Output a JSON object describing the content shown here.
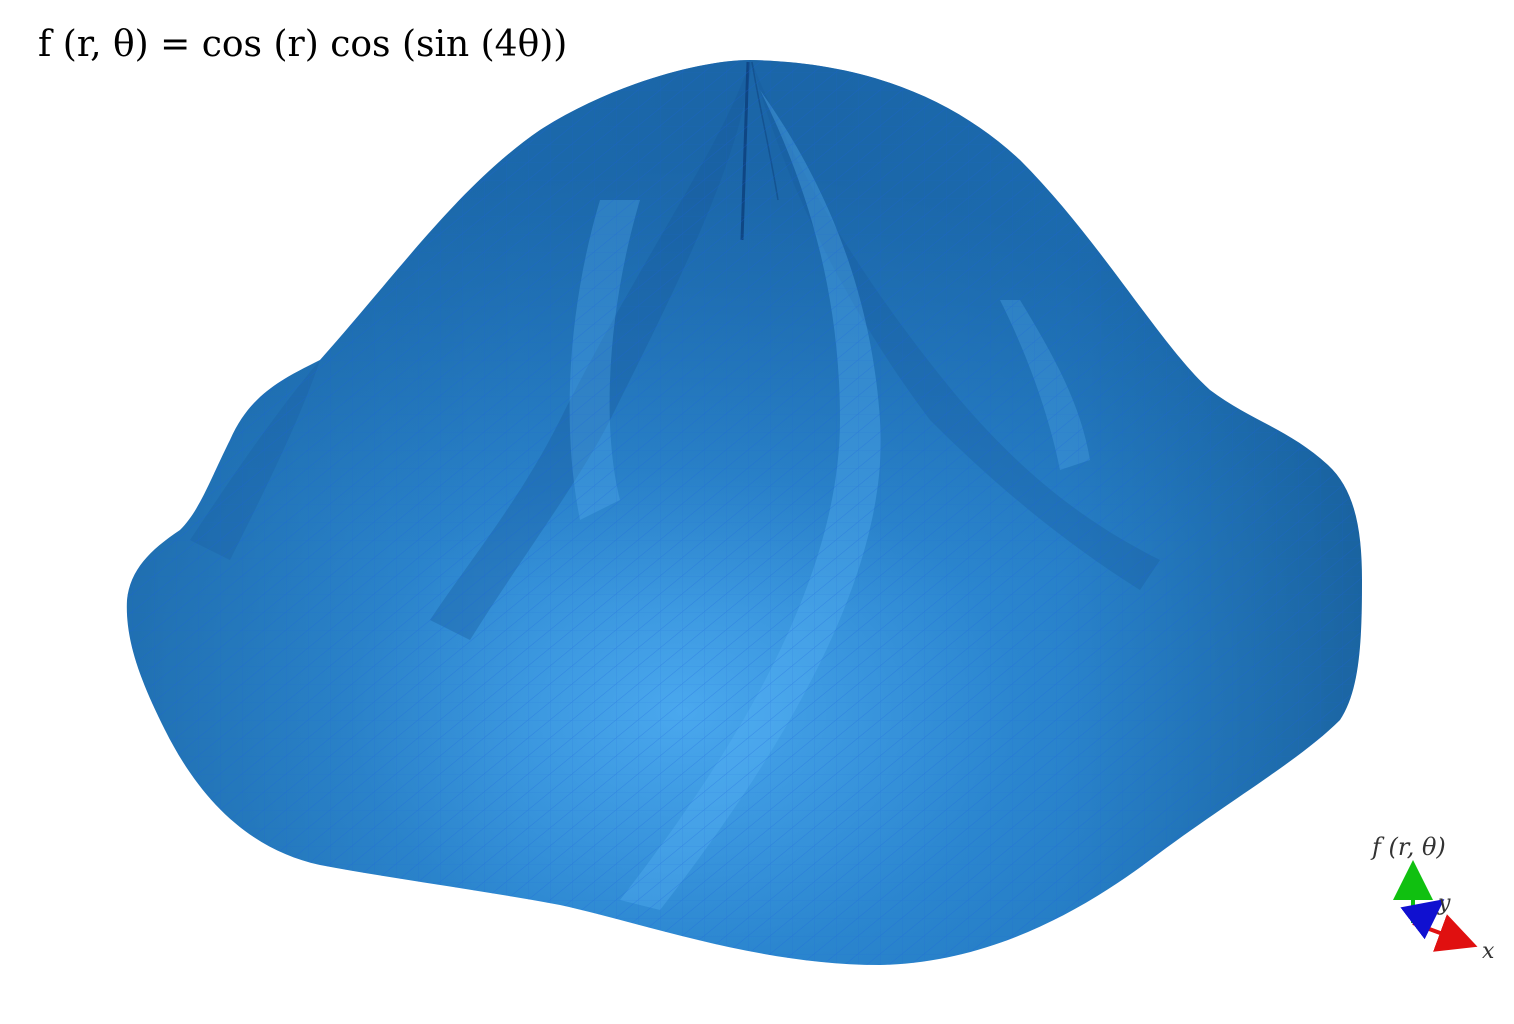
{
  "title": "f (r, θ) = cos (r) cos (sin (4θ))",
  "surface": {
    "function": "cos(r) cos(sin(4θ))",
    "color_base": "#1f78c1",
    "color_highlight": "#4aa8ee",
    "color_shadow": "#175f9c",
    "mesh_color": "#1a5fe0"
  },
  "axes": {
    "vertical_label": "f (r, θ)",
    "x_label": "x",
    "y_label": "y",
    "x_color": "#e01010",
    "y_color": "#1010d0",
    "z_color": "#10c010"
  }
}
